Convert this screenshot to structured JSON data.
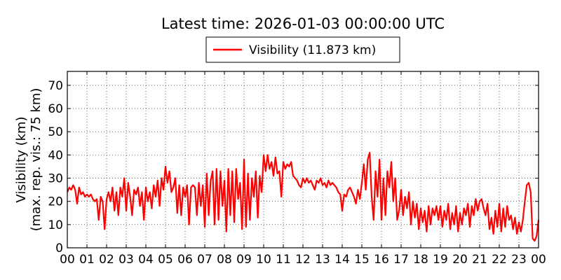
{
  "chart_data": {
    "type": "line",
    "title": "Latest time: 2026-01-03 00:00:00 UTC",
    "ylabel_line1": "Visibility (km)",
    "ylabel_line2": "(max. rep. vis.: 75 km)",
    "xlabel": "",
    "ylim": [
      0,
      76
    ],
    "xlim": [
      0,
      24
    ],
    "grid": true,
    "legend_position": "top-center",
    "x_tick_labels": [
      "00",
      "01",
      "02",
      "03",
      "04",
      "05",
      "06",
      "07",
      "08",
      "09",
      "10",
      "11",
      "12",
      "13",
      "14",
      "15",
      "16",
      "17",
      "18",
      "19",
      "20",
      "21",
      "22",
      "23",
      "00"
    ],
    "y_ticks": [
      0,
      10,
      20,
      30,
      40,
      50,
      60,
      70
    ],
    "series": [
      {
        "name": "Visibility (11.873 km)",
        "color": "#ff0000",
        "points": [
          [
            0.0,
            24
          ],
          [
            0.1,
            26
          ],
          [
            0.2,
            25
          ],
          [
            0.3,
            27
          ],
          [
            0.4,
            25
          ],
          [
            0.5,
            19
          ],
          [
            0.6,
            26
          ],
          [
            0.7,
            23
          ],
          [
            0.8,
            24
          ],
          [
            0.9,
            22
          ],
          [
            1.0,
            23
          ],
          [
            1.1,
            22
          ],
          [
            1.2,
            23
          ],
          [
            1.3,
            21
          ],
          [
            1.4,
            20
          ],
          [
            1.5,
            21
          ],
          [
            1.6,
            12
          ],
          [
            1.7,
            22
          ],
          [
            1.8,
            20
          ],
          [
            1.9,
            8
          ],
          [
            2.0,
            21
          ],
          [
            2.1,
            24
          ],
          [
            2.2,
            20
          ],
          [
            2.3,
            26
          ],
          [
            2.4,
            16
          ],
          [
            2.5,
            24
          ],
          [
            2.6,
            14
          ],
          [
            2.7,
            26
          ],
          [
            2.8,
            22
          ],
          [
            2.9,
            30
          ],
          [
            3.0,
            16
          ],
          [
            3.1,
            28
          ],
          [
            3.2,
            22
          ],
          [
            3.3,
            14
          ],
          [
            3.4,
            25
          ],
          [
            3.5,
            23
          ],
          [
            3.6,
            26
          ],
          [
            3.7,
            18
          ],
          [
            3.8,
            24
          ],
          [
            3.9,
            12
          ],
          [
            4.0,
            26
          ],
          [
            4.1,
            20
          ],
          [
            4.2,
            24
          ],
          [
            4.3,
            17
          ],
          [
            4.4,
            27
          ],
          [
            4.5,
            22
          ],
          [
            4.6,
            29
          ],
          [
            4.7,
            18
          ],
          [
            4.8,
            30
          ],
          [
            4.9,
            25
          ],
          [
            5.0,
            35
          ],
          [
            5.1,
            28
          ],
          [
            5.2,
            33
          ],
          [
            5.3,
            24
          ],
          [
            5.4,
            26
          ],
          [
            5.5,
            30
          ],
          [
            5.6,
            15
          ],
          [
            5.7,
            27
          ],
          [
            5.8,
            14
          ],
          [
            5.9,
            26
          ],
          [
            6.0,
            22
          ],
          [
            6.1,
            27
          ],
          [
            6.2,
            10
          ],
          [
            6.3,
            26
          ],
          [
            6.4,
            27
          ],
          [
            6.5,
            26
          ],
          [
            6.6,
            14
          ],
          [
            6.7,
            28
          ],
          [
            6.8,
            18
          ],
          [
            6.9,
            27
          ],
          [
            7.0,
            9
          ],
          [
            7.1,
            32
          ],
          [
            7.2,
            14
          ],
          [
            7.3,
            29
          ],
          [
            7.4,
            33
          ],
          [
            7.5,
            10
          ],
          [
            7.6,
            34
          ],
          [
            7.7,
            12
          ],
          [
            7.8,
            33
          ],
          [
            7.9,
            18
          ],
          [
            8.0,
            29
          ],
          [
            8.1,
            7
          ],
          [
            8.2,
            34
          ],
          [
            8.3,
            14
          ],
          [
            8.4,
            33
          ],
          [
            8.5,
            11
          ],
          [
            8.6,
            34
          ],
          [
            8.7,
            21
          ],
          [
            8.8,
            28
          ],
          [
            8.9,
            8
          ],
          [
            9.0,
            38
          ],
          [
            9.1,
            9
          ],
          [
            9.2,
            32
          ],
          [
            9.3,
            12
          ],
          [
            9.4,
            30
          ],
          [
            9.5,
            22
          ],
          [
            9.6,
            33
          ],
          [
            9.7,
            13
          ],
          [
            9.8,
            31
          ],
          [
            9.9,
            24
          ],
          [
            10.0,
            40
          ],
          [
            10.1,
            33
          ],
          [
            10.2,
            40
          ],
          [
            10.3,
            34
          ],
          [
            10.4,
            37
          ],
          [
            10.5,
            31
          ],
          [
            10.6,
            39
          ],
          [
            10.7,
            32
          ],
          [
            10.8,
            33
          ],
          [
            10.9,
            22
          ],
          [
            11.0,
            37
          ],
          [
            11.1,
            34
          ],
          [
            11.2,
            36
          ],
          [
            11.3,
            35
          ],
          [
            11.4,
            37
          ],
          [
            11.5,
            31
          ],
          [
            11.6,
            30
          ],
          [
            11.7,
            29
          ],
          [
            11.8,
            27
          ],
          [
            11.9,
            26
          ],
          [
            12.0,
            30
          ],
          [
            12.1,
            28
          ],
          [
            12.2,
            30
          ],
          [
            12.3,
            28
          ],
          [
            12.4,
            29
          ],
          [
            12.5,
            27
          ],
          [
            12.6,
            25
          ],
          [
            12.7,
            29
          ],
          [
            12.8,
            28
          ],
          [
            12.9,
            30
          ],
          [
            13.0,
            27
          ],
          [
            13.1,
            28
          ],
          [
            13.2,
            26
          ],
          [
            13.3,
            29
          ],
          [
            13.4,
            27
          ],
          [
            13.5,
            28
          ],
          [
            13.6,
            27
          ],
          [
            13.7,
            26
          ],
          [
            13.8,
            24
          ],
          [
            13.9,
            23
          ],
          [
            14.0,
            16
          ],
          [
            14.1,
            23
          ],
          [
            14.2,
            22
          ],
          [
            14.3,
            25
          ],
          [
            14.4,
            26
          ],
          [
            14.5,
            24
          ],
          [
            14.6,
            22
          ],
          [
            14.7,
            19
          ],
          [
            14.8,
            25
          ],
          [
            14.9,
            21
          ],
          [
            15.0,
            28
          ],
          [
            15.1,
            36
          ],
          [
            15.2,
            25
          ],
          [
            15.3,
            38
          ],
          [
            15.4,
            41
          ],
          [
            15.5,
            22
          ],
          [
            15.6,
            12
          ],
          [
            15.7,
            33
          ],
          [
            15.8,
            22
          ],
          [
            15.9,
            38
          ],
          [
            16.0,
            12
          ],
          [
            16.1,
            30
          ],
          [
            16.2,
            14
          ],
          [
            16.3,
            33
          ],
          [
            16.4,
            26
          ],
          [
            16.5,
            37
          ],
          [
            16.6,
            20
          ],
          [
            16.7,
            30
          ],
          [
            16.8,
            12
          ],
          [
            16.9,
            16
          ],
          [
            17.0,
            25
          ],
          [
            17.1,
            14
          ],
          [
            17.2,
            22
          ],
          [
            17.3,
            17
          ],
          [
            17.4,
            24
          ],
          [
            17.5,
            10
          ],
          [
            17.6,
            20
          ],
          [
            17.7,
            13
          ],
          [
            17.8,
            19
          ],
          [
            17.9,
            8
          ],
          [
            18.0,
            17
          ],
          [
            18.1,
            11
          ],
          [
            18.2,
            16
          ],
          [
            18.3,
            7
          ],
          [
            18.4,
            18
          ],
          [
            18.5,
            10
          ],
          [
            18.6,
            17
          ],
          [
            18.7,
            14
          ],
          [
            18.8,
            18
          ],
          [
            18.9,
            12
          ],
          [
            19.0,
            18
          ],
          [
            19.1,
            9
          ],
          [
            19.2,
            16
          ],
          [
            19.3,
            12
          ],
          [
            19.4,
            19
          ],
          [
            19.5,
            8
          ],
          [
            19.6,
            15
          ],
          [
            19.7,
            10
          ],
          [
            19.8,
            18
          ],
          [
            19.9,
            7
          ],
          [
            20.0,
            15
          ],
          [
            20.1,
            10
          ],
          [
            20.2,
            17
          ],
          [
            20.3,
            14
          ],
          [
            20.4,
            19
          ],
          [
            20.5,
            9
          ],
          [
            20.6,
            18
          ],
          [
            20.7,
            14
          ],
          [
            20.8,
            21
          ],
          [
            20.9,
            16
          ],
          [
            21.0,
            20
          ],
          [
            21.1,
            21
          ],
          [
            21.2,
            17
          ],
          [
            21.3,
            14
          ],
          [
            21.4,
            19
          ],
          [
            21.5,
            8
          ],
          [
            21.6,
            13
          ],
          [
            21.7,
            6
          ],
          [
            21.8,
            16
          ],
          [
            21.9,
            9
          ],
          [
            22.0,
            19
          ],
          [
            22.1,
            7
          ],
          [
            22.2,
            17
          ],
          [
            22.3,
            9
          ],
          [
            22.4,
            18
          ],
          [
            22.5,
            12
          ],
          [
            22.6,
            14
          ],
          [
            22.7,
            8
          ],
          [
            22.8,
            13
          ],
          [
            22.9,
            6
          ],
          [
            23.0,
            11
          ],
          [
            23.1,
            7
          ],
          [
            23.2,
            12
          ],
          [
            23.3,
            20
          ],
          [
            23.4,
            27
          ],
          [
            23.5,
            28
          ],
          [
            23.6,
            24
          ],
          [
            23.7,
            4
          ],
          [
            23.8,
            3
          ],
          [
            23.9,
            5
          ],
          [
            24.0,
            12
          ]
        ]
      }
    ]
  }
}
